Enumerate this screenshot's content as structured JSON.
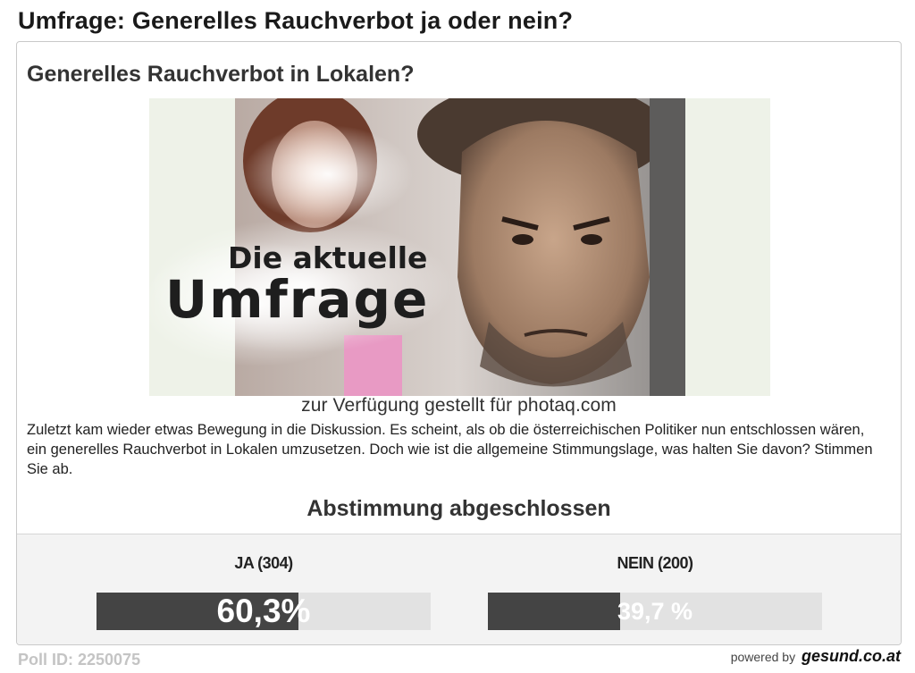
{
  "page": {
    "title": "Umfrage: Generelles Rauchverbot ja oder nein?"
  },
  "poll": {
    "question": "Generelles Rauchverbot in Lokalen?",
    "image": {
      "headline_small": "Die aktuelle",
      "headline_big": "Umfrage"
    },
    "credit": "zur Verfügung gestellt für photaq.com",
    "description": "Zuletzt kam wieder etwas Bewegung in die Diskussion. Es scheint, als ob die österreichischen Politiker nun entschlossen wären, ein generelles Rauchverbot in Lokalen umzusetzen. Doch wie ist die allgemeine Stimmungslage, was halten Sie davon? Stimmen Sie ab.",
    "status": "Abstimmung abgeschlossen",
    "options": [
      {
        "label": "JA (304)",
        "percent_text": "60,3%",
        "share": 0.603,
        "bar_color": "#444444"
      },
      {
        "label": "NEIN (200)",
        "percent_text": "39,7 %",
        "share": 0.397,
        "bar_color": "#444444"
      }
    ]
  },
  "footer": {
    "poll_id": "Poll ID: 2250075",
    "powered_by": "powered by",
    "brand": "gesund.co.at"
  }
}
